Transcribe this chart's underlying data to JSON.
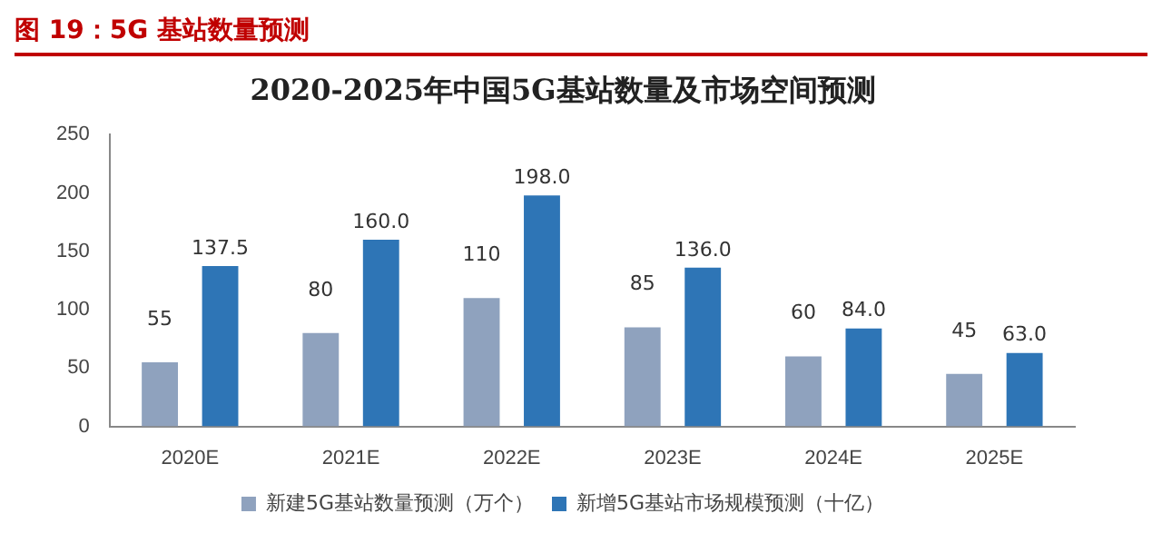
{
  "chart_data": {
    "type": "bar",
    "title": "图 19：5G 基站数量预测",
    "subtitle": "2020-2025年中国5G基站数量及市场空间预测",
    "categories": [
      "2020E",
      "2021E",
      "2022E",
      "2023E",
      "2024E",
      "2025E"
    ],
    "series": [
      {
        "name": "新建5G基站数量预测（万个）",
        "color": "#8fa2be",
        "values": [
          55,
          80,
          110,
          85,
          60,
          45
        ],
        "value_labels": [
          "55",
          "80",
          "110",
          "85",
          "60",
          "45"
        ]
      },
      {
        "name": "新增5G基站市场规模预测（十亿）",
        "color": "#2e75b6",
        "values": [
          137.5,
          160,
          198,
          136,
          84,
          63
        ],
        "value_labels": [
          "137.5",
          "160.0",
          "198.0",
          "136.0",
          "84.0",
          "63.0"
        ]
      }
    ],
    "ylim": [
      0,
      250
    ],
    "yticks": [
      0,
      50,
      100,
      150,
      200,
      250
    ],
    "grid": false,
    "legend": "bottom"
  }
}
